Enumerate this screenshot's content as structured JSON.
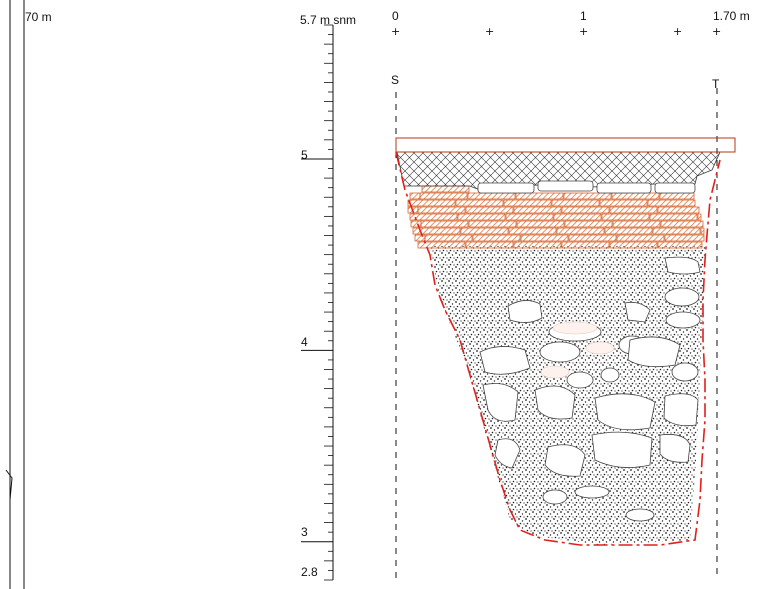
{
  "left_label": "70 m",
  "elevation_scale": {
    "top_label": "5.7 m snm",
    "labels": [
      "5",
      "4",
      "3",
      "2.8"
    ],
    "range": [
      2.8,
      5.7
    ],
    "minor_step": 0.05
  },
  "horizontal_scale": {
    "labels": [
      "0",
      "1",
      "1.70 m"
    ],
    "range": [
      0,
      1.7
    ]
  },
  "section_points": {
    "start": "S",
    "end": "T"
  },
  "colors": {
    "brick_stroke": "#d4531a",
    "brick_hatch": "#e0793c",
    "outline_red": "#e0201a",
    "line": "#111111"
  }
}
